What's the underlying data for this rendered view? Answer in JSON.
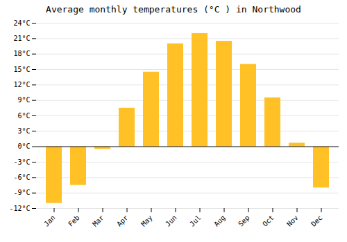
{
  "chart_data": {
    "type": "bar",
    "title": "Average monthly temperatures (°C ) in Northwood",
    "categories": [
      "Jan",
      "Feb",
      "Mar",
      "Apr",
      "May",
      "Jun",
      "Jul",
      "Aug",
      "Sep",
      "Oct",
      "Nov",
      "Dec"
    ],
    "values": [
      -11,
      -7.5,
      -0.5,
      7.5,
      14.5,
      20,
      22,
      20.5,
      16,
      9.5,
      0.7,
      -8
    ],
    "color": "#FFC125",
    "ylim": [
      -12,
      24
    ],
    "yticks": [
      {
        "value": -12,
        "label": "-12°C"
      },
      {
        "value": -9,
        "label": "-9°C"
      },
      {
        "value": -6,
        "label": "-6°C"
      },
      {
        "value": -3,
        "label": "-3°C"
      },
      {
        "value": 0,
        "label": "0°C"
      },
      {
        "value": 3,
        "label": "3°C"
      },
      {
        "value": 6,
        "label": "6°C"
      },
      {
        "value": 9,
        "label": "9°C"
      },
      {
        "value": 12,
        "label": "12°C"
      },
      {
        "value": 15,
        "label": "15°C"
      },
      {
        "value": 18,
        "label": "18°C"
      },
      {
        "value": 21,
        "label": "21°C"
      },
      {
        "value": 24,
        "label": "24°C"
      }
    ],
    "grid": true
  }
}
